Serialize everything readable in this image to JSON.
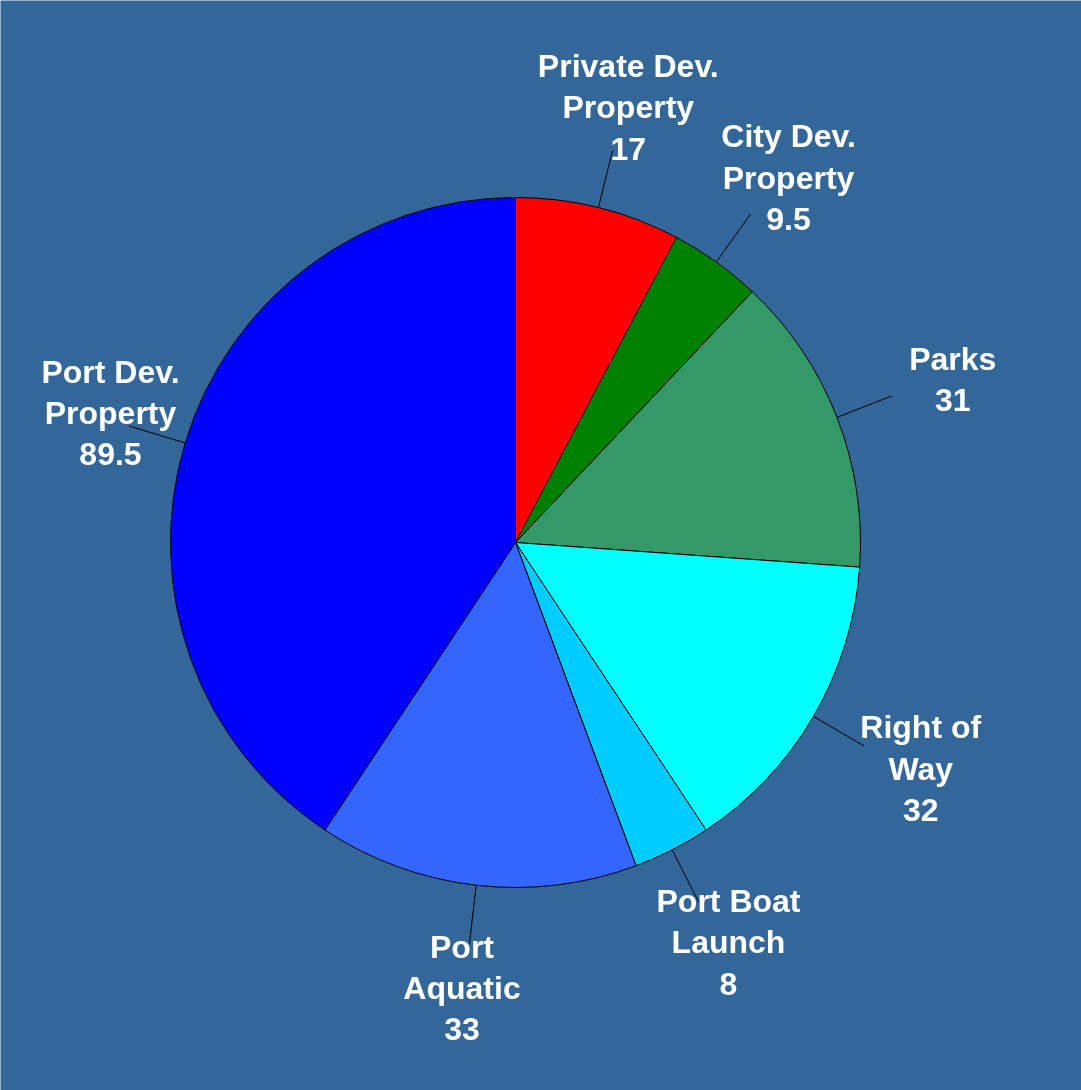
{
  "chart_data": {
    "type": "pie",
    "categories": [
      "Private Dev.\nProperty",
      "City Dev.\nProperty",
      "Parks",
      "Right of\nWay",
      "Port Boat\nLaunch",
      "Port\nAquatic",
      "Port Dev.\nProperty"
    ],
    "values": [
      17,
      9.5,
      31,
      32,
      8,
      33,
      89.5
    ],
    "colors": [
      "#ff0000",
      "#008000",
      "#339966",
      "#00ffff",
      "#00ccff",
      "#3366ff",
      "#0000ff"
    ],
    "data_labels": true
  }
}
